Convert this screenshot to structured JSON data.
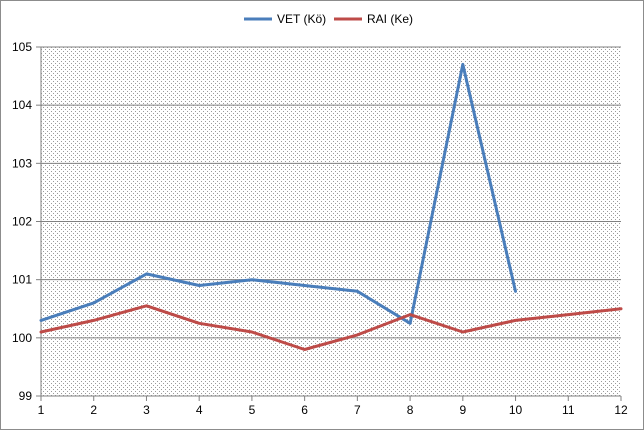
{
  "chart_data": {
    "type": "line",
    "title": "",
    "xlabel": "",
    "ylabel": "",
    "categories": [
      "1",
      "2",
      "3",
      "4",
      "5",
      "6",
      "7",
      "8",
      "9",
      "10",
      "11",
      "12"
    ],
    "ylim": [
      99,
      105
    ],
    "yticks": [
      "99",
      "100",
      "101",
      "102",
      "103",
      "104",
      "105"
    ],
    "grid": true,
    "legend_position": "top",
    "series": [
      {
        "name": "VET (Kö)",
        "color": "#4a7ebb",
        "values": [
          100.3,
          100.6,
          101.1,
          100.9,
          101.0,
          100.9,
          100.8,
          100.25,
          104.7,
          100.8,
          null,
          null
        ]
      },
      {
        "name": "RAI (Ke)",
        "color": "#be4b48",
        "values": [
          100.1,
          100.3,
          100.55,
          100.25,
          100.1,
          99.8,
          100.05,
          100.4,
          100.1,
          100.3,
          100.4,
          100.5
        ]
      }
    ]
  }
}
